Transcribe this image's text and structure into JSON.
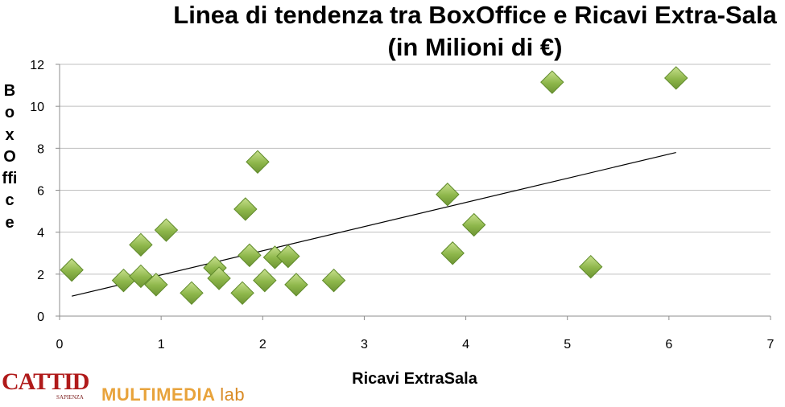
{
  "title_line1": "Linea di tendenza tra BoxOffice e Ricavi Extra-Sala",
  "title_line2": "(in Milioni di €)",
  "ylabel": "BoxOffice",
  "xlabel": "Ricavi ExtraSala",
  "logos": {
    "cattid": "CATTID",
    "cattid_sub": "SAPIENZA",
    "multimedia": "MULTIMEDIA",
    "lab": "lab"
  },
  "chart_data": {
    "type": "scatter",
    "title": "Linea di tendenza tra BoxOffice e Ricavi Extra-Sala (in Milioni di €)",
    "xlabel": "Ricavi ExtraSala",
    "ylabel": "BoxOffice",
    "xlim": [
      0,
      7
    ],
    "ylim": [
      0,
      12
    ],
    "xticks": [
      0,
      1,
      2,
      3,
      4,
      5,
      6,
      7
    ],
    "yticks": [
      0,
      2,
      4,
      6,
      8,
      10,
      12
    ],
    "grid": "horizontal",
    "marker": "diamond",
    "marker_color": "#8db64a",
    "points": [
      {
        "x": 0.12,
        "y": 2.2
      },
      {
        "x": 0.63,
        "y": 1.7
      },
      {
        "x": 0.8,
        "y": 1.9
      },
      {
        "x": 0.8,
        "y": 3.4
      },
      {
        "x": 0.95,
        "y": 1.5
      },
      {
        "x": 1.05,
        "y": 4.1
      },
      {
        "x": 1.3,
        "y": 1.1
      },
      {
        "x": 1.53,
        "y": 2.3
      },
      {
        "x": 1.57,
        "y": 1.8
      },
      {
        "x": 1.8,
        "y": 1.1
      },
      {
        "x": 1.83,
        "y": 5.1
      },
      {
        "x": 1.87,
        "y": 2.9
      },
      {
        "x": 1.95,
        "y": 7.35
      },
      {
        "x": 2.02,
        "y": 1.7
      },
      {
        "x": 2.12,
        "y": 2.8
      },
      {
        "x": 2.25,
        "y": 2.85
      },
      {
        "x": 2.33,
        "y": 1.5
      },
      {
        "x": 2.7,
        "y": 1.7
      },
      {
        "x": 3.82,
        "y": 5.8
      },
      {
        "x": 3.87,
        "y": 3.0
      },
      {
        "x": 4.08,
        "y": 4.35
      },
      {
        "x": 4.85,
        "y": 11.15
      },
      {
        "x": 5.23,
        "y": 2.35
      },
      {
        "x": 6.07,
        "y": 11.35
      }
    ],
    "trendline": {
      "x": [
        0.12,
        6.07
      ],
      "y": [
        0.95,
        7.8
      ],
      "color": "#000000"
    }
  }
}
